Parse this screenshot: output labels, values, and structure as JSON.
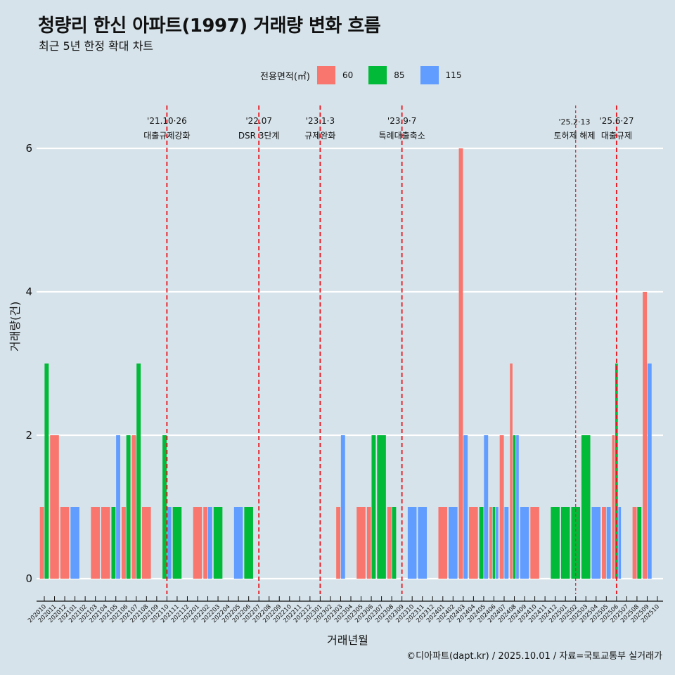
{
  "header": {
    "title": "청량리 한신 아파트(1997) 거래량 변화 흐름",
    "subtitle": "최근 5년 한정 확대 차트"
  },
  "legend": {
    "title": "전용면적(㎡)",
    "items": [
      {
        "label": "60",
        "color": "#f8766d"
      },
      {
        "label": "85",
        "color": "#00ba38"
      },
      {
        "label": "115",
        "color": "#619cff"
      }
    ]
  },
  "caption": "©디아파트(dapt.kr) / 2025.10.01 / 자료=국토교통부 실거래가",
  "chart_data": {
    "type": "bar",
    "title": "청량리 한신 아파트(1997) 거래량 변화 흐름",
    "subtitle": "최근 5년 한정 확대 차트",
    "xlabel": "거래년월",
    "ylabel": "거래량(건)",
    "ylim": [
      0,
      6
    ],
    "yticks": [
      "0",
      "2",
      "4",
      "6"
    ],
    "grid": "horizontal",
    "legend_position": "top",
    "position": "dodge",
    "categories": [
      "202010",
      "202011",
      "202012",
      "202101",
      "202102",
      "202103",
      "202104",
      "202105",
      "202106",
      "202107",
      "202108",
      "202109",
      "202110",
      "202111",
      "202112",
      "202201",
      "202202",
      "202203",
      "202204",
      "202205",
      "202206",
      "202207",
      "202208",
      "202209",
      "202210",
      "202211",
      "202212",
      "202301",
      "202302",
      "202303",
      "202304",
      "202305",
      "202306",
      "202307",
      "202308",
      "202309",
      "202310",
      "202311",
      "202312",
      "202401",
      "202402",
      "202403",
      "202404",
      "202405",
      "202406",
      "202407",
      "202408",
      "202409",
      "202410",
      "202411",
      "202412",
      "202501",
      "202502",
      "202503",
      "202504",
      "202505",
      "202506",
      "202507",
      "202508",
      "202509",
      "202510"
    ],
    "series": [
      {
        "name": "60",
        "color": "#f8766d",
        "values": [
          1,
          2,
          1,
          0,
          0,
          1,
          1,
          0,
          1,
          2,
          1,
          0,
          0,
          0,
          0,
          1,
          1,
          0,
          0,
          0,
          0,
          0,
          0,
          0,
          0,
          0,
          0,
          0,
          0,
          1,
          0,
          1,
          1,
          0,
          1,
          0,
          0,
          0,
          0,
          1,
          0,
          6,
          1,
          0,
          1,
          2,
          3,
          0,
          1,
          0,
          0,
          0,
          0,
          0,
          0,
          1,
          2,
          0,
          1,
          4,
          0
        ]
      },
      {
        "name": "85",
        "color": "#00ba38",
        "values": [
          3,
          0,
          0,
          0,
          0,
          0,
          0,
          1,
          2,
          3,
          0,
          0,
          2,
          1,
          0,
          0,
          0,
          1,
          0,
          0,
          1,
          0,
          0,
          0,
          0,
          0,
          0,
          0,
          0,
          0,
          0,
          0,
          2,
          2,
          1,
          0,
          0,
          0,
          0,
          0,
          0,
          0,
          0,
          1,
          1,
          0,
          2,
          0,
          0,
          0,
          1,
          1,
          1,
          2,
          0,
          0,
          3,
          0,
          1,
          0,
          0
        ]
      },
      {
        "name": "115",
        "color": "#619cff",
        "values": [
          0,
          0,
          0,
          1,
          0,
          0,
          0,
          2,
          0,
          0,
          0,
          0,
          1,
          0,
          0,
          0,
          1,
          0,
          0,
          1,
          0,
          0,
          0,
          0,
          0,
          0,
          0,
          0,
          0,
          2,
          0,
          0,
          0,
          0,
          0,
          0,
          1,
          1,
          0,
          0,
          1,
          2,
          0,
          2,
          1,
          1,
          2,
          1,
          0,
          0,
          0,
          0,
          0,
          0,
          1,
          1,
          1,
          0,
          0,
          3,
          0
        ]
      }
    ],
    "annotations": [
      {
        "date": "'21.10·26",
        "label": "대출규제강화",
        "month": "202110",
        "style": "dashed"
      },
      {
        "date": "'22.07",
        "label": "DSR 3단계",
        "month": "202207",
        "style": "dashed"
      },
      {
        "date": "'23.1·3",
        "label": "규제완화",
        "month": "202301",
        "style": "dashed"
      },
      {
        "date": "'23.9·7",
        "label": "특례대출축소",
        "month": "202309",
        "style": "dashed"
      },
      {
        "date": "'25.2·13",
        "label": "토허제 해제",
        "month": "202502",
        "style": "dashed-thin"
      },
      {
        "date": "'25.6·27",
        "label": "대출규제",
        "month": "202506",
        "style": "dashed"
      }
    ]
  }
}
